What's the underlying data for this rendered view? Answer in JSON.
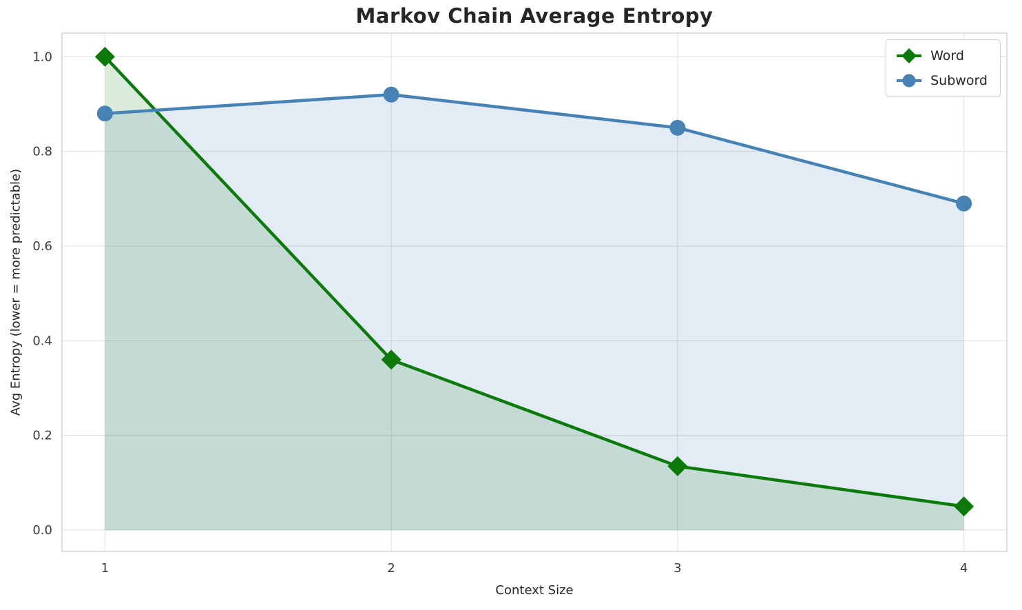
{
  "chart_data": {
    "type": "line",
    "title": "Markov Chain Average Entropy",
    "xlabel": "Context Size",
    "ylabel": "Avg Entropy (lower = more predictable)",
    "x": [
      1,
      2,
      3,
      4
    ],
    "xtick_labels": [
      "1",
      "2",
      "3",
      "4"
    ],
    "ytick_values": [
      0.0,
      0.2,
      0.4,
      0.6,
      0.8,
      1.0
    ],
    "ytick_labels": [
      "0.0",
      "0.2",
      "0.4",
      "0.6",
      "0.8",
      "1.0"
    ],
    "xlim": [
      0.85,
      4.15
    ],
    "ylim": [
      -0.045,
      1.05
    ],
    "grid": true,
    "grid_color": "#e7e7e7",
    "spine_color": "#cfcfcf",
    "tick_label_color": "#3a3a3a",
    "legend": {
      "position": "upper right",
      "entries": [
        "Word",
        "Subword"
      ]
    },
    "series": [
      {
        "name": "Word",
        "values": [
          1.0,
          0.36,
          0.135,
          0.05
        ],
        "color": "#0b7a0b",
        "marker": "diamond",
        "fill_to_zero": true,
        "fill_opacity": 0.15
      },
      {
        "name": "Subword",
        "values": [
          0.88,
          0.92,
          0.85,
          0.69
        ],
        "color": "#4682b4",
        "marker": "circle",
        "fill_to_zero": true,
        "fill_opacity": 0.15
      }
    ]
  }
}
